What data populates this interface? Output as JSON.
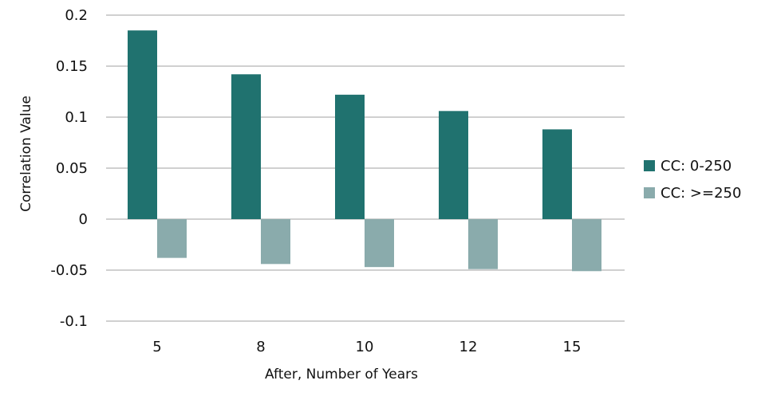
{
  "chart_data": {
    "type": "bar",
    "title": "",
    "xlabel": "After, Number of Years",
    "ylabel": "Correlation Value",
    "categories": [
      "5",
      "8",
      "10",
      "12",
      "15"
    ],
    "series": [
      {
        "name": "CC: 0-250",
        "values": [
          0.185,
          0.142,
          0.122,
          0.106,
          0.088
        ],
        "color": "#20726f"
      },
      {
        "name": "CC: >=250",
        "values": [
          -0.038,
          -0.044,
          -0.047,
          -0.049,
          -0.051
        ],
        "color": "#8aabac"
      }
    ],
    "ylim": [
      -0.1,
      0.2
    ],
    "yticks": [
      "-0.1",
      "-0.05",
      "0",
      "0.05",
      "0.1",
      "0.15",
      "0.2"
    ],
    "grid": true,
    "legend_position": "right",
    "colors": {
      "gridline": "#a0a0a0"
    }
  }
}
